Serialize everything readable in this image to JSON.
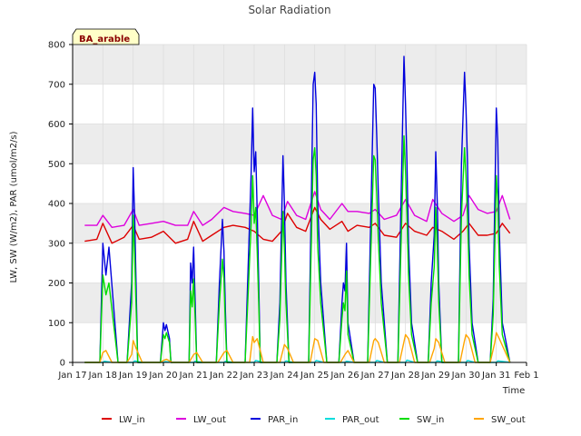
{
  "chart_data": {
    "type": "line",
    "title": "Solar Radiation",
    "xlabel": "Time",
    "ylabel": "LW, SW (W/m2), PAR (umol/m2/s)",
    "site_label": "BA_arable",
    "x_tick_labels": [
      "Jan 17",
      "Jan 18",
      "Jan 19",
      "Jan 20",
      "Jan 21",
      "Jan 22",
      "Jan 23",
      "Jan 24",
      "Jan 25",
      "Jan 26",
      "Jan 27",
      "Jan 28",
      "Jan 29",
      "Jan 30",
      "Jan 31",
      "Feb 1"
    ],
    "xlim": [
      17.0,
      32.0
    ],
    "ylim": [
      0,
      800
    ],
    "y_ticks": [
      0,
      100,
      200,
      300,
      400,
      500,
      600,
      700,
      800
    ],
    "grid": true,
    "legend_position": "bottom",
    "data_start": 17.4,
    "data_end": 31.45,
    "series": [
      {
        "name": "LW_in",
        "color": "#dd0000",
        "x": [
          17.4,
          17.8,
          18.0,
          18.3,
          18.7,
          19.0,
          19.2,
          19.6,
          20.0,
          20.4,
          20.8,
          21.0,
          21.3,
          21.6,
          22.0,
          22.3,
          22.7,
          23.0,
          23.3,
          23.6,
          23.9,
          24.1,
          24.4,
          24.7,
          25.0,
          25.2,
          25.5,
          25.9,
          26.1,
          26.4,
          26.8,
          27.0,
          27.3,
          27.7,
          28.0,
          28.3,
          28.7,
          28.9,
          29.2,
          29.6,
          29.9,
          30.1,
          30.4,
          30.7,
          31.0,
          31.2,
          31.45
        ],
        "values": [
          305,
          310,
          350,
          300,
          315,
          345,
          310,
          315,
          330,
          300,
          310,
          355,
          305,
          320,
          340,
          345,
          340,
          330,
          310,
          305,
          330,
          375,
          340,
          330,
          390,
          360,
          335,
          355,
          330,
          345,
          340,
          350,
          320,
          315,
          350,
          330,
          320,
          340,
          330,
          310,
          330,
          350,
          320,
          320,
          325,
          350,
          325
        ]
      },
      {
        "name": "LW_out",
        "color": "#dd00dd",
        "x": [
          17.4,
          17.8,
          18.0,
          18.3,
          18.7,
          19.0,
          19.2,
          19.6,
          20.0,
          20.4,
          20.8,
          21.0,
          21.3,
          21.6,
          22.0,
          22.3,
          22.7,
          23.0,
          23.3,
          23.6,
          23.9,
          24.1,
          24.4,
          24.7,
          25.0,
          25.2,
          25.5,
          25.9,
          26.1,
          26.4,
          26.8,
          27.0,
          27.3,
          27.7,
          28.0,
          28.3,
          28.7,
          28.9,
          29.2,
          29.6,
          29.9,
          30.1,
          30.4,
          30.7,
          31.0,
          31.2,
          31.45
        ],
        "values": [
          345,
          345,
          370,
          340,
          345,
          385,
          345,
          350,
          355,
          345,
          345,
          380,
          345,
          360,
          390,
          380,
          375,
          370,
          420,
          370,
          360,
          405,
          370,
          360,
          430,
          385,
          360,
          400,
          380,
          380,
          375,
          385,
          360,
          370,
          410,
          370,
          355,
          410,
          375,
          355,
          370,
          420,
          385,
          375,
          380,
          420,
          360
        ]
      },
      {
        "name": "PAR_in",
        "color": "#0000dd",
        "x": [
          17.4,
          17.9,
          18.0,
          18.1,
          18.2,
          18.5,
          18.8,
          18.95,
          19.0,
          19.05,
          19.15,
          19.45,
          19.9,
          20.0,
          20.05,
          20.1,
          20.2,
          20.25,
          20.5,
          20.85,
          20.9,
          20.95,
          21.0,
          21.05,
          21.1,
          21.25,
          21.4,
          21.75,
          21.85,
          21.95,
          22.0,
          22.05,
          22.1,
          22.3,
          22.7,
          22.9,
          22.95,
          23.0,
          23.05,
          23.1,
          23.15,
          23.2,
          23.45,
          23.75,
          23.85,
          23.95,
          24.0,
          24.05,
          24.15,
          24.4,
          24.8,
          24.95,
          25.0,
          25.05,
          25.1,
          25.2,
          25.4,
          25.8,
          25.9,
          25.95,
          26.0,
          26.05,
          26.1,
          26.3,
          26.75,
          26.85,
          26.95,
          27.0,
          27.05,
          27.1,
          27.2,
          27.4,
          27.75,
          27.85,
          27.95,
          28.0,
          28.05,
          28.1,
          28.2,
          28.4,
          28.75,
          28.85,
          28.95,
          29.0,
          29.05,
          29.1,
          29.2,
          29.4,
          29.75,
          29.85,
          29.95,
          30.0,
          30.05,
          30.1,
          30.2,
          30.4,
          30.8,
          30.9,
          30.95,
          31.0,
          31.05,
          31.1,
          31.2,
          31.45
        ],
        "values": [
          0,
          0,
          300,
          220,
          290,
          0,
          0,
          200,
          490,
          370,
          0,
          0,
          0,
          100,
          80,
          95,
          60,
          0,
          0,
          0,
          250,
          200,
          290,
          150,
          0,
          0,
          0,
          0,
          200,
          360,
          280,
          130,
          0,
          0,
          0,
          480,
          640,
          480,
          530,
          380,
          200,
          0,
          0,
          0,
          150,
          520,
          400,
          200,
          0,
          0,
          0,
          700,
          730,
          650,
          400,
          200,
          0,
          0,
          150,
          200,
          180,
          300,
          100,
          0,
          0,
          350,
          700,
          690,
          570,
          430,
          200,
          0,
          0,
          400,
          770,
          650,
          500,
          300,
          100,
          0,
          0,
          200,
          320,
          530,
          400,
          200,
          0,
          0,
          0,
          500,
          730,
          640,
          500,
          300,
          100,
          0,
          0,
          160,
          400,
          640,
          560,
          330,
          100,
          0
        ]
      },
      {
        "name": "PAR_out",
        "color": "#00dddd",
        "x": [
          17.4,
          18.0,
          18.05,
          18.3,
          19.0,
          19.05,
          19.3,
          20.0,
          20.05,
          20.3,
          21.0,
          21.05,
          21.3,
          22.0,
          22.05,
          22.3,
          23.0,
          23.05,
          23.3,
          24.0,
          24.05,
          24.3,
          25.0,
          25.05,
          25.3,
          26.0,
          26.05,
          26.3,
          27.0,
          27.05,
          27.3,
          28.0,
          28.05,
          28.3,
          29.0,
          29.05,
          29.3,
          30.0,
          30.05,
          30.3,
          31.0,
          31.05,
          31.45
        ],
        "values": [
          0,
          0,
          3,
          0,
          0,
          4,
          0,
          0,
          2,
          0,
          0,
          3,
          0,
          0,
          3,
          0,
          0,
          5,
          0,
          0,
          4,
          0,
          0,
          5,
          0,
          0,
          3,
          0,
          0,
          5,
          0,
          0,
          6,
          0,
          0,
          4,
          0,
          0,
          5,
          0,
          0,
          4,
          0
        ]
      },
      {
        "name": "SW_in",
        "color": "#00dd00",
        "x": [
          17.4,
          17.9,
          18.0,
          18.1,
          18.2,
          18.5,
          18.8,
          18.95,
          19.0,
          19.05,
          19.15,
          19.45,
          19.9,
          20.0,
          20.05,
          20.1,
          20.2,
          20.25,
          20.5,
          20.85,
          20.9,
          20.95,
          21.0,
          21.05,
          21.1,
          21.25,
          21.4,
          21.75,
          21.85,
          21.95,
          22.0,
          22.05,
          22.1,
          22.3,
          22.7,
          22.9,
          22.95,
          23.0,
          23.05,
          23.1,
          23.15,
          23.2,
          23.45,
          23.75,
          23.85,
          23.95,
          24.0,
          24.05,
          24.15,
          24.4,
          24.8,
          24.95,
          25.0,
          25.05,
          25.1,
          25.2,
          25.4,
          25.8,
          25.9,
          25.95,
          26.0,
          26.05,
          26.1,
          26.3,
          26.75,
          26.85,
          26.95,
          27.0,
          27.05,
          27.1,
          27.2,
          27.4,
          27.75,
          27.85,
          27.95,
          28.0,
          28.05,
          28.1,
          28.2,
          28.4,
          28.75,
          28.85,
          28.95,
          29.0,
          29.05,
          29.1,
          29.2,
          29.4,
          29.75,
          29.85,
          29.95,
          30.0,
          30.05,
          30.1,
          30.2,
          30.4,
          30.8,
          30.9,
          30.95,
          31.0,
          31.05,
          31.1,
          31.2,
          31.45
        ],
        "values": [
          0,
          0,
          220,
          170,
          200,
          0,
          0,
          150,
          370,
          270,
          0,
          0,
          0,
          70,
          60,
          75,
          50,
          0,
          0,
          0,
          180,
          140,
          210,
          110,
          0,
          0,
          0,
          0,
          150,
          260,
          210,
          90,
          0,
          0,
          0,
          350,
          470,
          350,
          390,
          280,
          150,
          0,
          0,
          0,
          110,
          380,
          290,
          150,
          0,
          0,
          0,
          510,
          540,
          470,
          290,
          150,
          0,
          0,
          110,
          150,
          130,
          230,
          70,
          0,
          0,
          260,
          520,
          510,
          420,
          310,
          150,
          0,
          0,
          290,
          570,
          480,
          370,
          220,
          70,
          0,
          0,
          150,
          240,
          390,
          290,
          150,
          0,
          0,
          0,
          370,
          540,
          470,
          370,
          220,
          70,
          0,
          0,
          120,
          290,
          470,
          410,
          240,
          70,
          0
        ]
      },
      {
        "name": "SW_out",
        "color": "#ffa500",
        "x": [
          17.4,
          17.9,
          18.0,
          18.1,
          18.3,
          18.8,
          18.95,
          19.0,
          19.1,
          19.3,
          19.9,
          20.0,
          20.1,
          20.3,
          20.85,
          21.0,
          21.1,
          21.3,
          21.8,
          22.0,
          22.1,
          22.3,
          22.85,
          22.95,
          23.0,
          23.1,
          23.3,
          23.85,
          24.0,
          24.1,
          24.3,
          24.85,
          25.0,
          25.1,
          25.3,
          25.85,
          26.0,
          26.1,
          26.3,
          26.8,
          26.95,
          27.0,
          27.1,
          27.3,
          27.8,
          28.0,
          28.1,
          28.3,
          28.8,
          28.95,
          29.0,
          29.1,
          29.3,
          29.8,
          29.95,
          30.0,
          30.1,
          30.3,
          30.8,
          30.95,
          31.0,
          31.1,
          31.45
        ],
        "values": [
          0,
          0,
          25,
          30,
          0,
          0,
          20,
          55,
          35,
          0,
          0,
          5,
          8,
          0,
          0,
          20,
          25,
          0,
          0,
          25,
          30,
          0,
          0,
          65,
          50,
          60,
          0,
          0,
          45,
          35,
          0,
          0,
          60,
          55,
          0,
          0,
          20,
          30,
          0,
          0,
          55,
          60,
          50,
          0,
          0,
          70,
          60,
          0,
          0,
          35,
          60,
          50,
          0,
          0,
          55,
          70,
          60,
          0,
          0,
          50,
          75,
          60,
          0
        ]
      }
    ]
  }
}
